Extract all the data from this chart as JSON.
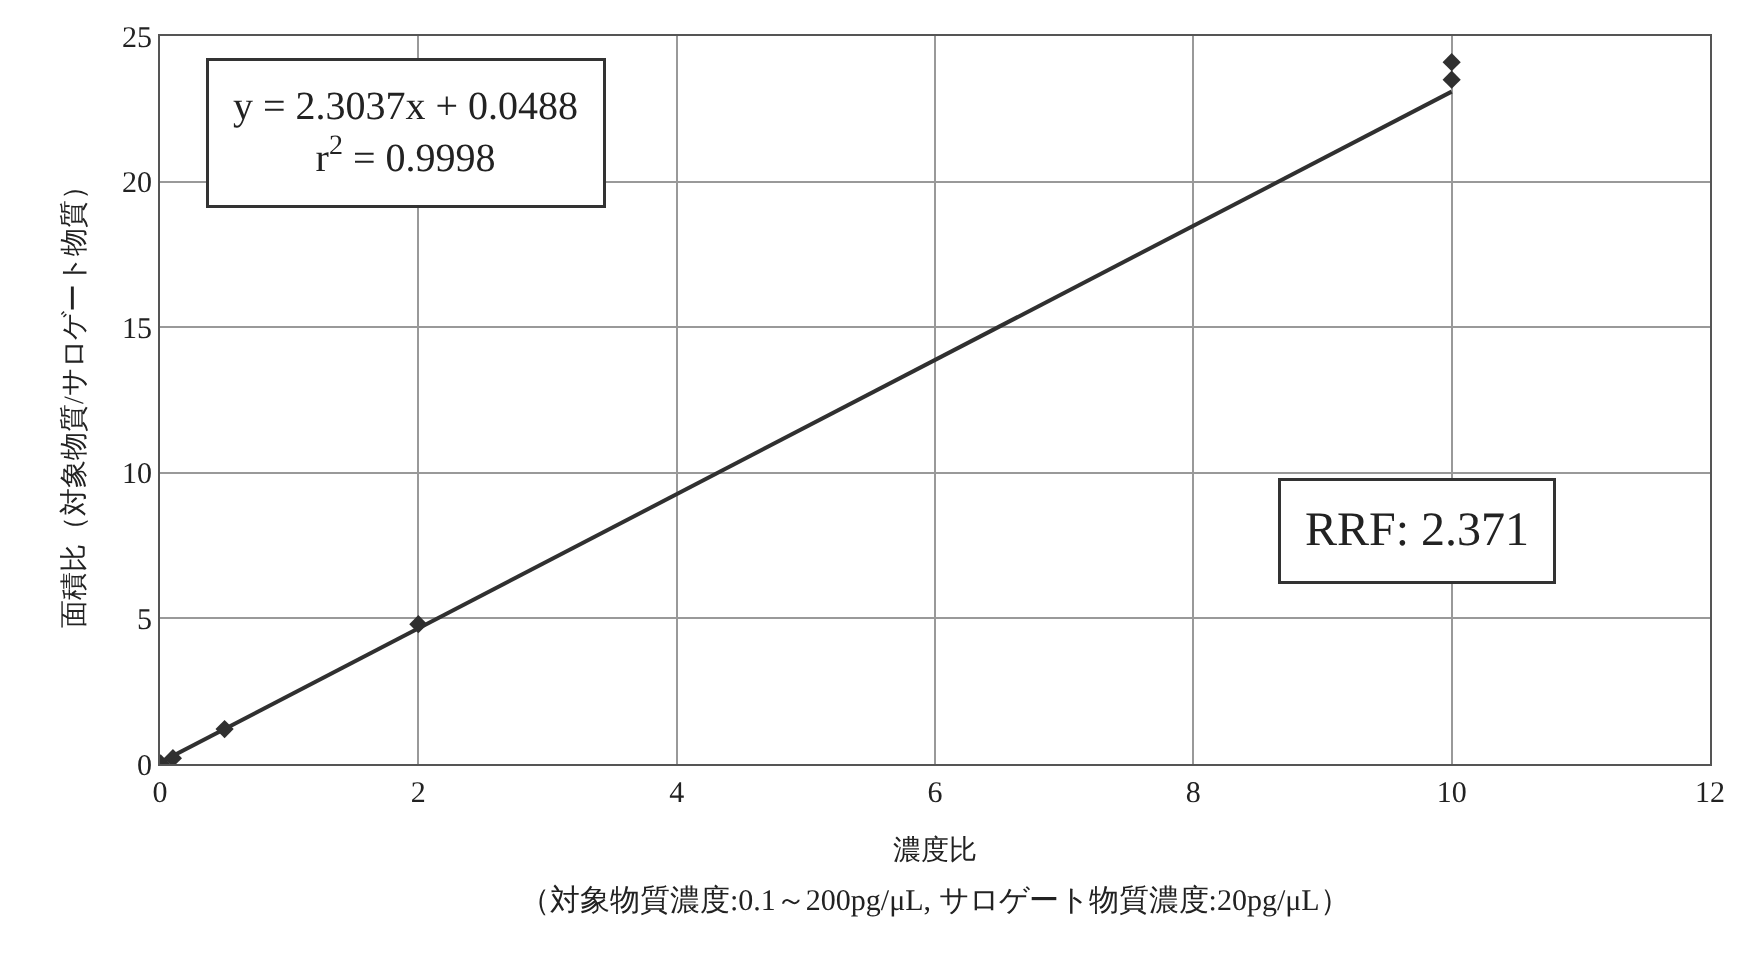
{
  "chart_data": {
    "type": "scatter",
    "xlabel": "濃度比",
    "ylabel": "面積比（対象物質/サロゲート物質）",
    "series": [
      {
        "color": "#303030",
        "x": [
          0.005,
          0.1,
          0.5,
          2,
          10,
          10
        ],
        "values": [
          0.02,
          0.2,
          1.2,
          4.8,
          23.5,
          24.1
        ],
        "marker": "diamond"
      },
      {
        "type": "line",
        "color": "#303030",
        "x": [
          0,
          10
        ],
        "values": [
          0.05,
          23.09
        ],
        "marker": "none"
      }
    ],
    "annotations": [
      "y = 2.3037x + 0.0488",
      "r$^{2}$ = 0.9998",
      "RRF: 2.371",
      "（対象物質濃度:0.1～200pg/μL, サロゲート物質濃度:20pg/μL）"
    ],
    "xlim": [
      0,
      12
    ],
    "xticks": [
      0,
      2,
      4,
      6,
      8,
      10,
      12
    ],
    "ylim": [
      0,
      25
    ],
    "yticks": [
      0,
      5,
      10,
      15,
      20,
      25
    ],
    "grid": true
  }
}
